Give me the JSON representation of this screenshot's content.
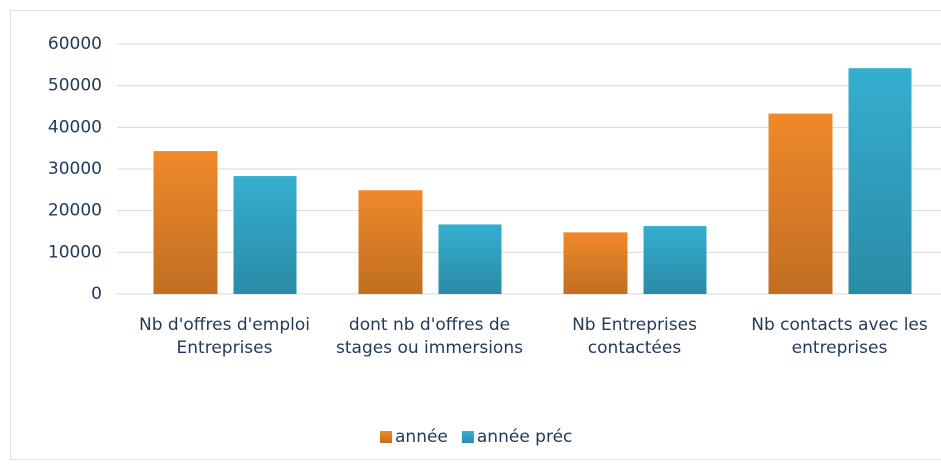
{
  "chart_data": {
    "type": "bar",
    "categories": [
      "Nb d'offres d'emploi Entreprises",
      "dont nb d'offres de stages ou immersions",
      "Nb Entreprises contactées",
      "Nb contacts avec les entreprises"
    ],
    "series": [
      {
        "name": "année",
        "color": "#f0892a",
        "values": [
          34300,
          24900,
          14800,
          43300
        ]
      },
      {
        "name": "année préc",
        "color": "#35aed0",
        "values": [
          28300,
          16700,
          16300,
          54200
        ]
      }
    ],
    "ylim": [
      0,
      60000
    ],
    "yticks": [
      0,
      10000,
      20000,
      30000,
      40000,
      50000,
      60000
    ],
    "grid": true,
    "legend": "bottom"
  }
}
